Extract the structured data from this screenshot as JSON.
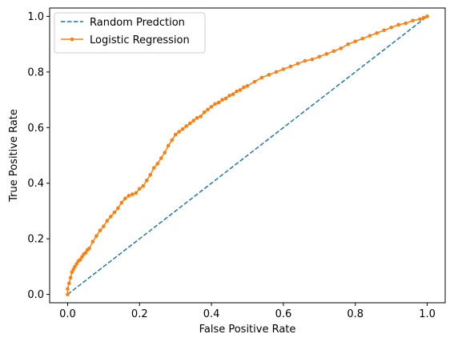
{
  "chart_data": {
    "type": "line",
    "xlabel": "False Positive Rate",
    "ylabel": "True Positive Rate",
    "xlim": [
      -0.05,
      1.05
    ],
    "ylim": [
      -0.03,
      1.03
    ],
    "xticks": [
      0.0,
      0.2,
      0.4,
      0.6,
      0.8,
      1.0
    ],
    "yticks": [
      0.0,
      0.2,
      0.4,
      0.6,
      0.8,
      1.0
    ],
    "xtick_labels": [
      "0.0",
      "0.2",
      "0.4",
      "0.6",
      "0.8",
      "1.0"
    ],
    "ytick_labels": [
      "0.0",
      "0.2",
      "0.4",
      "0.6",
      "0.8",
      "1.0"
    ],
    "grid": false,
    "legend_position": "upper-left",
    "series": [
      {
        "name": "Random Predction",
        "color": "#1f77b4",
        "style": "dashed",
        "x": [
          0,
          1
        ],
        "y": [
          0,
          1
        ]
      },
      {
        "name": "Logistic Regression",
        "color": "#ff7f0e",
        "style": "solid-with-point-markers",
        "x": [
          0.0,
          0.0,
          0.004,
          0.008,
          0.012,
          0.016,
          0.02,
          0.025,
          0.03,
          0.035,
          0.04,
          0.045,
          0.05,
          0.055,
          0.06,
          0.07,
          0.08,
          0.09,
          0.1,
          0.11,
          0.12,
          0.13,
          0.14,
          0.15,
          0.16,
          0.17,
          0.18,
          0.19,
          0.2,
          0.21,
          0.22,
          0.23,
          0.24,
          0.25,
          0.26,
          0.27,
          0.28,
          0.29,
          0.3,
          0.31,
          0.32,
          0.33,
          0.34,
          0.35,
          0.36,
          0.37,
          0.38,
          0.39,
          0.4,
          0.41,
          0.42,
          0.43,
          0.44,
          0.45,
          0.46,
          0.47,
          0.48,
          0.49,
          0.5,
          0.52,
          0.54,
          0.56,
          0.58,
          0.6,
          0.62,
          0.64,
          0.66,
          0.68,
          0.7,
          0.72,
          0.74,
          0.76,
          0.78,
          0.8,
          0.82,
          0.84,
          0.86,
          0.88,
          0.9,
          0.92,
          0.94,
          0.96,
          0.98,
          0.99,
          1.0
        ],
        "y": [
          0.0,
          0.02,
          0.04,
          0.06,
          0.08,
          0.09,
          0.1,
          0.11,
          0.12,
          0.125,
          0.135,
          0.145,
          0.15,
          0.16,
          0.165,
          0.19,
          0.21,
          0.23,
          0.245,
          0.265,
          0.28,
          0.295,
          0.31,
          0.33,
          0.345,
          0.355,
          0.36,
          0.365,
          0.38,
          0.39,
          0.41,
          0.43,
          0.455,
          0.47,
          0.49,
          0.51,
          0.535,
          0.555,
          0.575,
          0.585,
          0.595,
          0.605,
          0.615,
          0.625,
          0.635,
          0.64,
          0.655,
          0.665,
          0.675,
          0.685,
          0.69,
          0.7,
          0.705,
          0.715,
          0.72,
          0.73,
          0.735,
          0.745,
          0.75,
          0.765,
          0.78,
          0.79,
          0.8,
          0.81,
          0.82,
          0.83,
          0.84,
          0.845,
          0.855,
          0.865,
          0.875,
          0.885,
          0.9,
          0.91,
          0.92,
          0.93,
          0.94,
          0.95,
          0.96,
          0.97,
          0.975,
          0.985,
          0.99,
          0.995,
          1.0
        ]
      }
    ]
  }
}
